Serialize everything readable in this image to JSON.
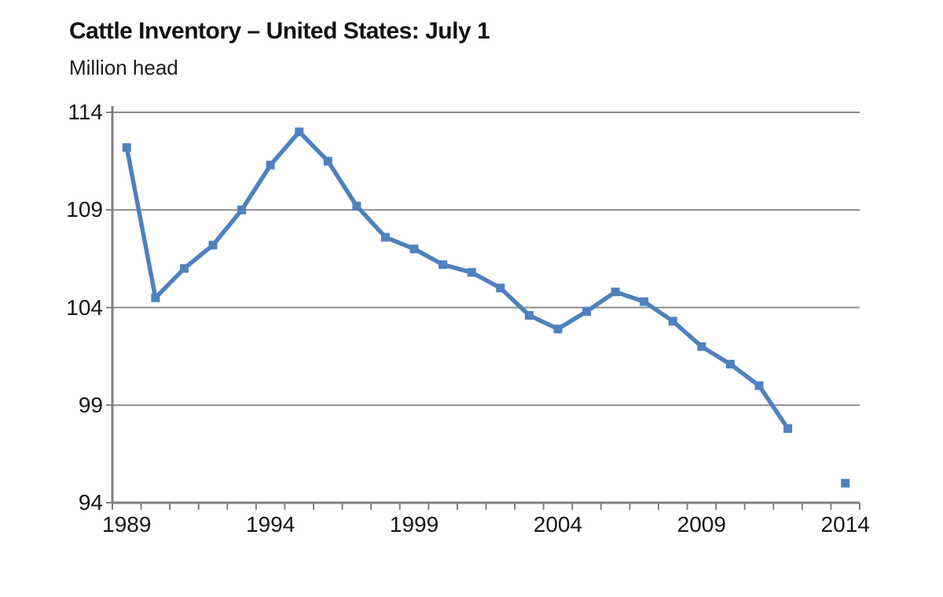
{
  "header": {
    "title": "Cattle Inventory – United States: July 1",
    "unit_label": "Million head"
  },
  "chart_data": {
    "type": "line",
    "title": "Cattle Inventory – United States: July 1",
    "ylabel": "Million head",
    "xlabel": "",
    "categories": [
      1989,
      1990,
      1991,
      1992,
      1993,
      1994,
      1995,
      1996,
      1997,
      1998,
      1999,
      2000,
      2001,
      2002,
      2003,
      2004,
      2005,
      2006,
      2007,
      2008,
      2009,
      2010,
      2011,
      2012,
      2013,
      2014
    ],
    "series": [
      {
        "name": "Cattle inventory",
        "values": [
          112.2,
          104.5,
          106.0,
          107.2,
          109.0,
          111.3,
          113.0,
          111.5,
          109.2,
          107.6,
          107.0,
          106.2,
          105.8,
          105.0,
          103.6,
          102.9,
          103.8,
          104.8,
          104.3,
          103.3,
          102.0,
          101.1,
          100.0,
          97.8,
          null,
          95.0
        ]
      }
    ],
    "missing_data_note": "no value plotted for 2013",
    "ylim": [
      94,
      114
    ],
    "yticks": [
      114,
      109,
      104,
      99,
      94
    ],
    "xtick_labels": [
      1989,
      1994,
      1999,
      2004,
      2009,
      2014
    ],
    "grid": true,
    "legend_position": "none",
    "line_color": "#4F81BD",
    "marker": "square",
    "grid_color": "#8c8c8c",
    "axis_color": "#7f7f7f"
  }
}
